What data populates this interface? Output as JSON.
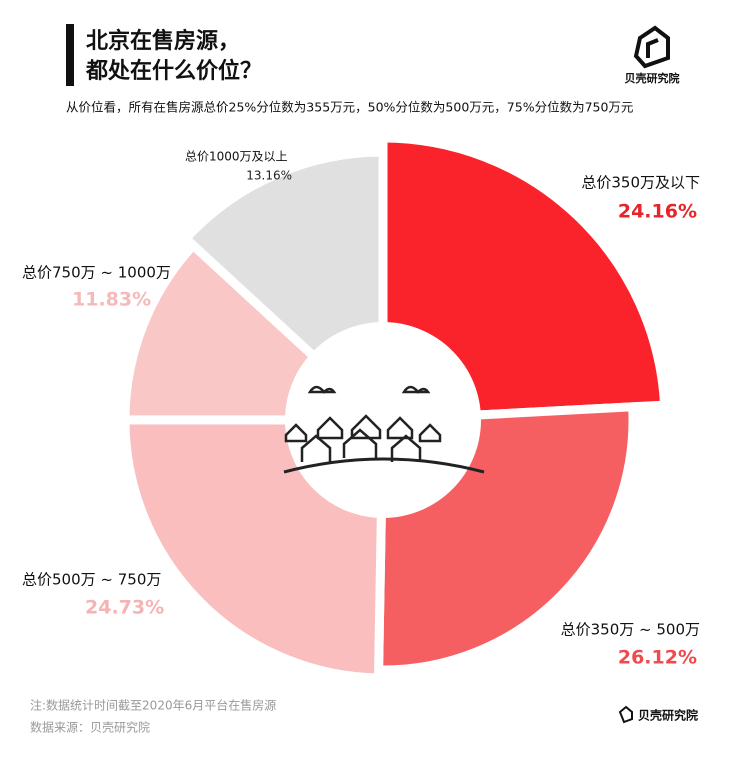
{
  "header": {
    "title_line1": "北京在售房源，",
    "title_line2": "都处在什么价位？",
    "logo": "贝壳研究院",
    "subtitle": "从价位看，所有在售房源总价25%分位数为355万元，50%分位数为500万元，75%分位数为750万元"
  },
  "chart_data": {
    "type": "pie",
    "categories": [
      "总价350万及以下",
      "总价350万 ~ 500万",
      "总价500万 ~ 750万",
      "总价750万 ~ 1000万",
      "总价1000万及以上"
    ],
    "values": [
      24.16,
      26.12,
      24.73,
      11.83,
      13.16
    ],
    "value_labels": [
      "24.16%",
      "26.12%",
      "24.73%",
      "11.83%",
      "13.16%"
    ],
    "colors": [
      "#fa232c",
      "#f65f62",
      "#fabebe",
      "#fac7c7",
      "#e0e0e0"
    ]
  },
  "footer": {
    "note": "注:数据统计时间截至2020年6月平台在售房源",
    "source": "数据来源：贝壳研究院",
    "logo": "贝壳研究院"
  }
}
